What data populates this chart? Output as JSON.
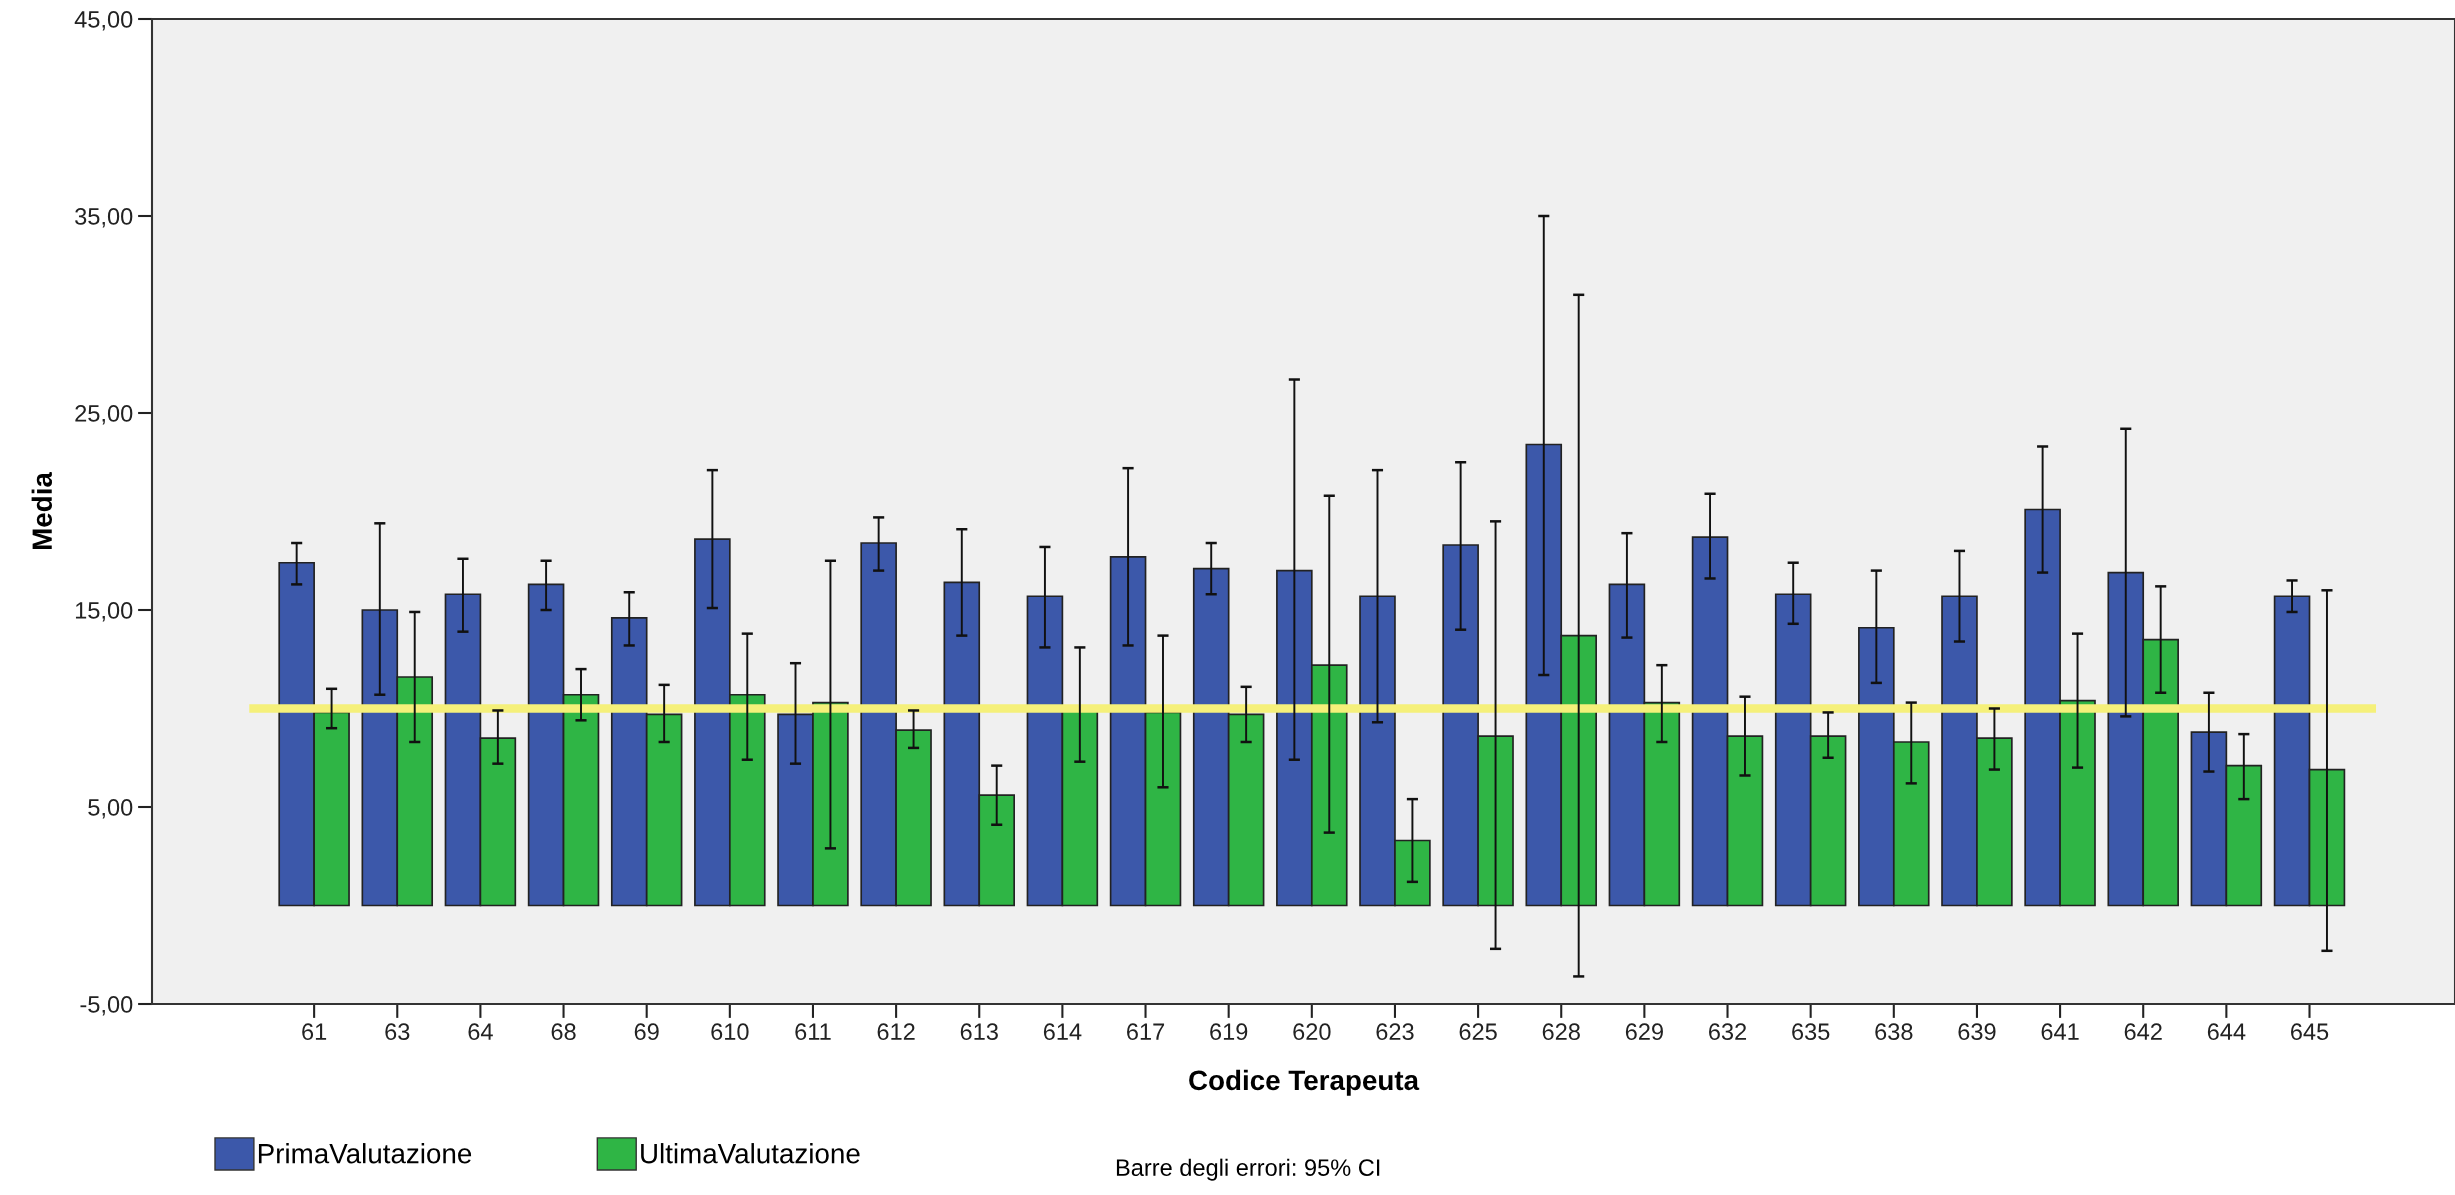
{
  "chart_data": {
    "type": "bar",
    "xlabel": "Codice Terapeuta",
    "ylabel": "Media",
    "categories": [
      "61",
      "63",
      "64",
      "68",
      "69",
      "610",
      "611",
      "612",
      "613",
      "614",
      "617",
      "619",
      "620",
      "623",
      "625",
      "628",
      "629",
      "632",
      "635",
      "638",
      "639",
      "641",
      "642",
      "644",
      "645"
    ],
    "series": [
      {
        "name": "PrimaValutazione",
        "color": "#3c58aa",
        "values": [
          17.4,
          15.0,
          15.8,
          16.3,
          14.6,
          18.6,
          9.7,
          18.4,
          16.4,
          15.7,
          17.7,
          17.1,
          17.0,
          15.7,
          18.3,
          23.4,
          16.3,
          18.7,
          15.8,
          14.1,
          15.7,
          20.1,
          16.9,
          8.8,
          15.7
        ],
        "errors": [
          [
            16.3,
            18.4
          ],
          [
            10.7,
            19.4
          ],
          [
            13.9,
            17.6
          ],
          [
            15.0,
            17.5
          ],
          [
            13.2,
            15.9
          ],
          [
            15.1,
            22.1
          ],
          [
            7.2,
            12.3
          ],
          [
            17.0,
            19.7
          ],
          [
            13.7,
            19.1
          ],
          [
            13.1,
            18.2
          ],
          [
            13.2,
            22.2
          ],
          [
            15.8,
            18.4
          ],
          [
            7.4,
            26.7
          ],
          [
            9.3,
            22.1
          ],
          [
            14.0,
            22.5
          ],
          [
            11.7,
            35.0
          ],
          [
            13.6,
            18.9
          ],
          [
            16.6,
            20.9
          ],
          [
            14.3,
            17.4
          ],
          [
            11.3,
            17.0
          ],
          [
            13.4,
            18.0
          ],
          [
            16.9,
            23.3
          ],
          [
            9.6,
            24.2
          ],
          [
            6.8,
            10.8
          ],
          [
            14.9,
            16.5
          ]
        ]
      },
      {
        "name": "UltimaValutazione",
        "color": "#2fb545",
        "values": [
          9.8,
          11.6,
          8.5,
          10.7,
          9.7,
          10.7,
          10.3,
          8.9,
          5.6,
          10.1,
          9.8,
          9.7,
          12.2,
          3.3,
          8.6,
          13.7,
          10.3,
          8.6,
          8.6,
          8.3,
          8.5,
          10.4,
          13.5,
          7.1,
          6.9
        ],
        "errors": [
          [
            9.0,
            11.0
          ],
          [
            8.3,
            14.9
          ],
          [
            7.2,
            9.9
          ],
          [
            9.4,
            12.0
          ],
          [
            8.3,
            11.2
          ],
          [
            7.4,
            13.8
          ],
          [
            2.9,
            17.5
          ],
          [
            8.0,
            9.9
          ],
          [
            4.1,
            7.1
          ],
          [
            7.3,
            13.1
          ],
          [
            6.0,
            13.7
          ],
          [
            8.3,
            11.1
          ],
          [
            3.7,
            20.8
          ],
          [
            1.2,
            5.4
          ],
          [
            -2.2,
            19.5
          ],
          [
            -3.6,
            31.0
          ],
          [
            8.3,
            12.2
          ],
          [
            6.6,
            10.6
          ],
          [
            7.5,
            9.8
          ],
          [
            6.2,
            10.3
          ],
          [
            6.9,
            10.0
          ],
          [
            7.0,
            13.8
          ],
          [
            10.8,
            16.2
          ],
          [
            5.4,
            8.7
          ],
          [
            -2.3,
            16.0
          ]
        ]
      }
    ],
    "ylim": [
      -5,
      45
    ],
    "yticks": [
      {
        "value": -5,
        "label": "-5,00"
      },
      {
        "value": 5,
        "label": "5,00"
      },
      {
        "value": 15,
        "label": "15,00"
      },
      {
        "value": 25,
        "label": "25,00"
      },
      {
        "value": 35,
        "label": "35,00"
      },
      {
        "value": 45,
        "label": "45,00"
      }
    ],
    "ref_lines": [
      {
        "axis": "y",
        "value": 10,
        "label": null,
        "color": "#f5f07a"
      }
    ],
    "legend": "bottom left",
    "grid": false,
    "annotations": [
      "Barre degli errori: 95% CI"
    ]
  }
}
